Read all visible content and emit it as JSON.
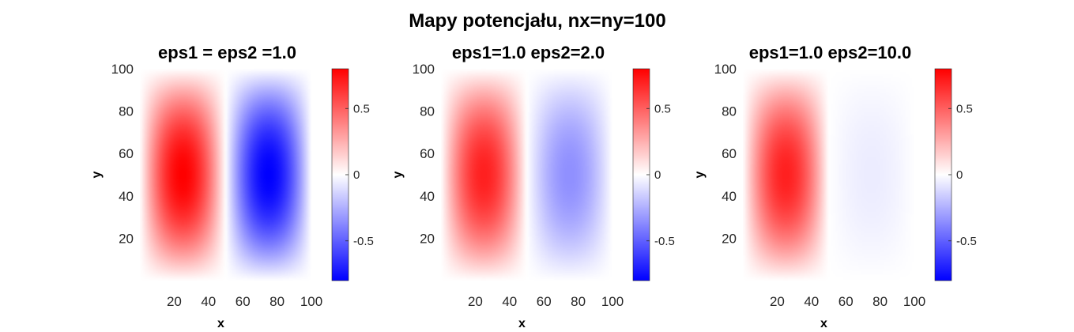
{
  "figure_title": "Mapy potencjału, nx=ny=100",
  "chart_data": [
    {
      "type": "heatmap",
      "title": "eps1 = eps2 =1.0",
      "xlabel": "x",
      "ylabel": "y",
      "xlim": [
        0,
        100
      ],
      "ylim": [
        0,
        100
      ],
      "xticks": [
        "20",
        "40",
        "60",
        "80",
        "100"
      ],
      "yticks": [
        "20",
        "40",
        "60",
        "80",
        "100"
      ],
      "colormap": "blue-white-red",
      "clim": [
        -0.8,
        0.8
      ],
      "colorbar_ticks": [
        "0.5",
        "0",
        "-0.5"
      ],
      "peaks": [
        {
          "x": 25,
          "y": 50,
          "value": 0.8
        },
        {
          "x": 75,
          "y": 50,
          "value": -0.8
        }
      ],
      "width": 50
    },
    {
      "type": "heatmap",
      "title": "eps1=1.0 eps2=2.0",
      "xlabel": "x",
      "ylabel": "y",
      "xlim": [
        0,
        100
      ],
      "ylim": [
        0,
        100
      ],
      "xticks": [
        "20",
        "40",
        "60",
        "80",
        "100"
      ],
      "yticks": [
        "20",
        "40",
        "60",
        "80",
        "100"
      ],
      "colormap": "blue-white-red",
      "clim": [
        -0.8,
        0.8
      ],
      "colorbar_ticks": [
        "0.5",
        "0",
        "-0.5"
      ],
      "peaks": [
        {
          "x": 25,
          "y": 50,
          "value": 0.7
        },
        {
          "x": 75,
          "y": 50,
          "value": -0.35
        }
      ],
      "width": 50
    },
    {
      "type": "heatmap",
      "title": "eps1=1.0 eps2=10.0",
      "xlabel": "x",
      "ylabel": "y",
      "xlim": [
        0,
        100
      ],
      "ylim": [
        0,
        100
      ],
      "xticks": [
        "20",
        "40",
        "60",
        "80",
        "100"
      ],
      "yticks": [
        "20",
        "40",
        "60",
        "80",
        "100"
      ],
      "colormap": "blue-white-red",
      "clim": [
        -0.8,
        0.8
      ],
      "colorbar_ticks": [
        "0.5",
        "0",
        "-0.5"
      ],
      "peaks": [
        {
          "x": 25,
          "y": 50,
          "value": 0.7
        },
        {
          "x": 75,
          "y": 50,
          "value": -0.06
        }
      ],
      "width": 50
    }
  ]
}
